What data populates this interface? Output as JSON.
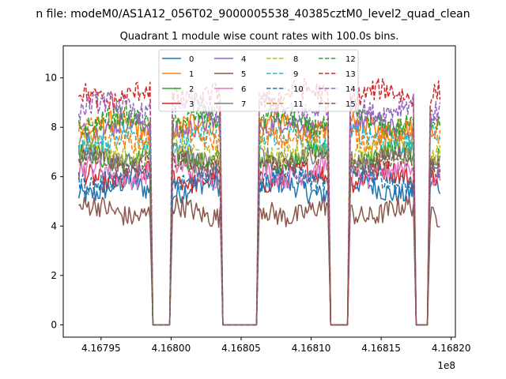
{
  "chart_data": {
    "type": "line",
    "suptitle": "n file: modeM0/AS1A12_056T02_9000005538_40385cztM0_level2_quad_clean",
    "title": "Quadrant 1 module wise count rates with 100.0s bins.",
    "xlabel": "",
    "ylabel": "",
    "x_offset_label": "1e8",
    "x_range_raw": [
      416793400,
      416819200
    ],
    "x_axis_domain": [
      416792300,
      416820300
    ],
    "y_range": [
      -0.5,
      11.3
    ],
    "xticks": [
      416795000,
      416800000,
      416805000,
      416810000,
      416815000,
      416820000
    ],
    "xtick_labels": [
      "4.16795",
      "4.16800",
      "4.16805",
      "4.16810",
      "4.16815",
      "4.16820"
    ],
    "yticks": [
      0,
      2,
      4,
      6,
      8,
      10
    ],
    "ytick_labels": [
      "0",
      "2",
      "4",
      "6",
      "8",
      "10"
    ],
    "bin_seconds": 100,
    "segments": [
      {
        "start": 416793400,
        "end": 416798500
      },
      {
        "start": 416800100,
        "end": 416803500
      },
      {
        "start": 416806300,
        "end": 416811200
      },
      {
        "start": 416812800,
        "end": 416817300
      },
      {
        "start": 416818500,
        "end": 416819200
      }
    ],
    "gap_value": 0,
    "legend_loc": "upper center",
    "grid": false,
    "series": [
      {
        "name": "0",
        "color": "#1f77b4",
        "dash": "solid",
        "mean": 5.5
      },
      {
        "name": "1",
        "color": "#ff7f0e",
        "dash": "solid",
        "mean": 8.0
      },
      {
        "name": "2",
        "color": "#2ca02c",
        "dash": "solid",
        "mean": 6.8
      },
      {
        "name": "3",
        "color": "#d62728",
        "dash": "solid",
        "mean": 6.0
      },
      {
        "name": "4",
        "color": "#9467bd",
        "dash": "solid",
        "mean": 8.0
      },
      {
        "name": "5",
        "color": "#8c564b",
        "dash": "solid",
        "mean": 4.6
      },
      {
        "name": "6",
        "color": "#e377c2",
        "dash": "solid",
        "mean": 6.2
      },
      {
        "name": "7",
        "color": "#7f7f7f",
        "dash": "solid",
        "mean": 6.8
      },
      {
        "name": "8",
        "color": "#bcbd22",
        "dash": "dashed",
        "mean": 7.1
      },
      {
        "name": "9",
        "color": "#17becf",
        "dash": "dashed",
        "mean": 7.5
      },
      {
        "name": "10",
        "color": "#1f77b4",
        "dash": "dashed",
        "mean": 5.9
      },
      {
        "name": "11",
        "color": "#ff7f0e",
        "dash": "dashed",
        "mean": 7.7
      },
      {
        "name": "12",
        "color": "#2ca02c",
        "dash": "dashed",
        "mean": 8.2
      },
      {
        "name": "13",
        "color": "#d62728",
        "dash": "dashed",
        "mean": 9.3
      },
      {
        "name": "14",
        "color": "#9467bd",
        "dash": "dashed",
        "mean": 8.8
      },
      {
        "name": "15",
        "color": "#8c564b",
        "dash": "dashed",
        "mean": 6.6
      }
    ]
  }
}
